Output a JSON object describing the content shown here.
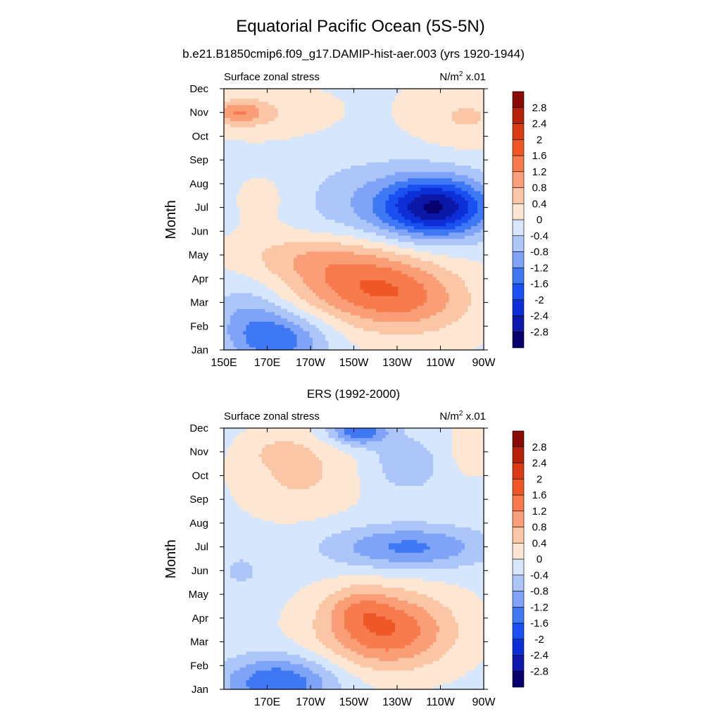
{
  "figure": {
    "title": "Equatorial Pacific Ocean (5S-5N)"
  },
  "chart_data": [
    {
      "type": "heatmap",
      "subtitle": "b.e21.B1850cmip6.f09_g17.DAMIP-hist-aer.003 (yrs 1920-1944)",
      "left_label": "Surface zonal stress",
      "units_base": "N/m",
      "units_sup": "2",
      "units_scale": " x.01",
      "ylabel": "Month",
      "xlabel": "",
      "x_ticks": [
        "150E",
        "170E",
        "170W",
        "150W",
        "130W",
        "110W",
        "90W"
      ],
      "x_tick_lon": [
        150,
        170,
        190,
        210,
        230,
        250,
        270
      ],
      "y_ticks": [
        "Jan",
        "Feb",
        "Mar",
        "Apr",
        "May",
        "Jun",
        "Jul",
        "Aug",
        "Sep",
        "Oct",
        "Nov",
        "Dec"
      ],
      "xlim": [
        150,
        270
      ],
      "ylim": [
        1,
        12
      ],
      "blobs": [
        {
          "lon": 248,
          "mon": 7.0,
          "rx": 24,
          "ry": 1.2,
          "amp": -2.3
        },
        {
          "lon": 225,
          "mon": 7.2,
          "rx": 48,
          "ry": 1.9,
          "amp": -0.7
        },
        {
          "lon": 175,
          "mon": 1.4,
          "rx": 22,
          "ry": 1.2,
          "amp": -1.4
        },
        {
          "lon": 160,
          "mon": 2.6,
          "rx": 18,
          "ry": 1.3,
          "amp": -0.6
        },
        {
          "lon": 213,
          "mon": 3.9,
          "rx": 34,
          "ry": 1.6,
          "amp": 1.4
        },
        {
          "lon": 238,
          "mon": 3.0,
          "rx": 28,
          "ry": 1.4,
          "amp": 0.8
        },
        {
          "lon": 185,
          "mon": 5.0,
          "rx": 28,
          "ry": 0.9,
          "amp": 0.5
        },
        {
          "lon": 157,
          "mon": 11.0,
          "rx": 11,
          "ry": 0.5,
          "amp": 1.0
        },
        {
          "lon": 170,
          "mon": 11.0,
          "rx": 26,
          "ry": 0.9,
          "amp": 0.4
        },
        {
          "lon": 262,
          "mon": 10.8,
          "rx": 24,
          "ry": 1.3,
          "amp": 0.5
        },
        {
          "lon": 172,
          "mon": 7.3,
          "rx": 18,
          "ry": 1.4,
          "amp": 0.3
        }
      ],
      "bias": -0.05
    },
    {
      "type": "heatmap",
      "subtitle": "ERS (1992-2000)",
      "left_label": "Surface zonal stress",
      "units_base": "N/m",
      "units_sup": "2",
      "units_scale": " x.01",
      "ylabel": "Month",
      "xlabel": "",
      "x_ticks": [
        "170E",
        "170W",
        "150W",
        "130W",
        "110W",
        "90W"
      ],
      "x_tick_lon": [
        170,
        190,
        210,
        230,
        250,
        270
      ],
      "y_ticks": [
        "Jan",
        "Feb",
        "Mar",
        "Apr",
        "May",
        "Jun",
        "Jul",
        "Aug",
        "Sep",
        "Oct",
        "Nov",
        "Dec"
      ],
      "xlim": [
        150,
        270
      ],
      "ylim": [
        1,
        12
      ],
      "blobs": [
        {
          "lon": 225,
          "mon": 3.5,
          "rx": 30,
          "ry": 1.6,
          "amp": 1.7
        },
        {
          "lon": 212,
          "mon": 4.5,
          "rx": 14,
          "ry": 0.9,
          "amp": 0.5
        },
        {
          "lon": 235,
          "mon": 7.0,
          "rx": 36,
          "ry": 0.9,
          "amp": -1.2
        },
        {
          "lon": 212,
          "mon": 11.9,
          "rx": 14,
          "ry": 0.6,
          "amp": -1.5
        },
        {
          "lon": 175,
          "mon": 1.3,
          "rx": 26,
          "ry": 1.1,
          "amp": -1.5
        },
        {
          "lon": 235,
          "mon": 10.5,
          "rx": 18,
          "ry": 1.2,
          "amp": -0.6
        },
        {
          "lon": 185,
          "mon": 10.2,
          "rx": 26,
          "ry": 1.8,
          "amp": 0.6
        },
        {
          "lon": 175,
          "mon": 11.0,
          "rx": 12,
          "ry": 0.6,
          "amp": 0.3
        },
        {
          "lon": 158,
          "mon": 6.0,
          "rx": 10,
          "ry": 0.8,
          "amp": -0.4
        },
        {
          "lon": 262,
          "mon": 11.0,
          "rx": 14,
          "ry": 1.2,
          "amp": 0.3
        }
      ],
      "bias": -0.1
    }
  ],
  "colorbar": {
    "levels": [
      -3.2,
      -2.8,
      -2.4,
      -2.0,
      -1.6,
      -1.2,
      -0.8,
      -0.4,
      0,
      0.4,
      0.8,
      1.2,
      1.6,
      2.0,
      2.4,
      2.8,
      3.2
    ],
    "labels": [
      "2.8",
      "2.4",
      "2",
      "1.6",
      "1.2",
      "0.8",
      "0.4",
      "0",
      "-0.4",
      "-0.8",
      "-1.2",
      "-1.6",
      "-2",
      "-2.4",
      "-2.8"
    ],
    "colors": [
      "#08006e",
      "#0b18a8",
      "#0d2fd8",
      "#1a4ff2",
      "#3e78f5",
      "#7ea3f7",
      "#adc6fa",
      "#d6e6fc",
      "#fde6d2",
      "#fbc6a5",
      "#f99e76",
      "#f77b4c",
      "#ef5826",
      "#d93b13",
      "#b5220c",
      "#8a0a05"
    ]
  }
}
